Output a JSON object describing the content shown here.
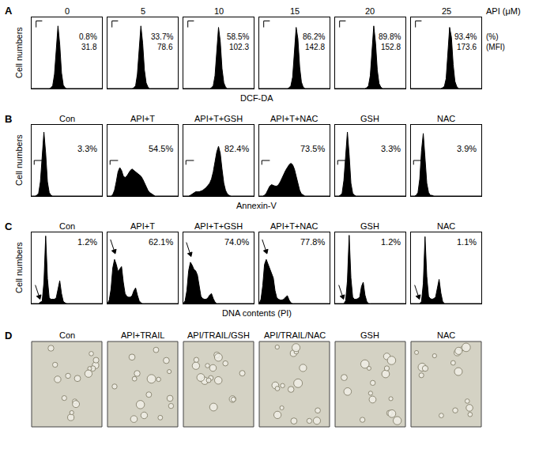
{
  "chart_data": [
    {
      "type": "area",
      "letter": "A",
      "x_label": "DCF-DA",
      "y_label": "Cell numbers",
      "header": "API (μM)",
      "row_labels": [
        "(%)",
        "(MFI)"
      ],
      "log": "x",
      "tick_labels": false,
      "grid": false,
      "color": "#000000",
      "xlim": [
        1,
        10000
      ],
      "ylim": [
        0,
        100
      ],
      "gate": [
        63.1,
        10000
      ],
      "x": [
        1,
        1.26,
        1.58,
        2,
        2.51,
        3.16,
        3.98,
        5.01,
        6.31,
        7.94,
        10,
        12.6,
        15.8,
        20,
        25.1,
        31.6,
        39.8,
        50.1,
        63.1,
        79.4,
        100,
        126,
        158,
        200,
        251,
        316,
        398,
        501,
        631,
        794,
        1000,
        1259,
        1585,
        1995,
        2512,
        3162,
        3981,
        5012,
        6310,
        7943,
        10000
      ],
      "series": [
        {
          "name": "0",
          "labels": [
            "0.8%",
            "31.8"
          ],
          "values": [
            0,
            0,
            0,
            0,
            0,
            0,
            0,
            0,
            0,
            0,
            0,
            1,
            4,
            20,
            60,
            88,
            62,
            22,
            5,
            1,
            0,
            0,
            0,
            0,
            0,
            0,
            0,
            0,
            0,
            0,
            0,
            0,
            0,
            0,
            0,
            0,
            0,
            0,
            0,
            0,
            0
          ]
        },
        {
          "name": "5",
          "labels": [
            "33.7%",
            "78.6"
          ],
          "values": [
            0,
            0,
            0,
            0,
            0,
            0,
            0,
            0,
            0,
            0,
            0,
            0,
            0,
            0,
            0,
            1,
            4,
            20,
            60,
            88,
            64,
            26,
            8,
            2,
            0,
            0,
            0,
            0,
            0,
            0,
            0,
            0,
            0,
            0,
            0,
            0,
            0,
            0,
            0,
            0,
            0
          ]
        },
        {
          "name": "10",
          "labels": [
            "58.5%",
            "102.3"
          ],
          "values": [
            0,
            0,
            0,
            0,
            0,
            0,
            0,
            0,
            0,
            0,
            0,
            0,
            0,
            0,
            0,
            0,
            1,
            4,
            18,
            58,
            86,
            66,
            28,
            8,
            2,
            0,
            0,
            0,
            0,
            0,
            0,
            0,
            0,
            0,
            0,
            0,
            0,
            0,
            0,
            0,
            0
          ]
        },
        {
          "name": "15",
          "labels": [
            "86.2%",
            "142.8"
          ],
          "values": [
            0,
            0,
            0,
            0,
            0,
            0,
            0,
            0,
            0,
            0,
            0,
            0,
            0,
            0,
            0,
            0,
            0,
            1,
            4,
            16,
            55,
            86,
            70,
            30,
            9,
            2,
            0,
            0,
            0,
            0,
            0,
            0,
            0,
            0,
            0,
            0,
            0,
            0,
            0,
            0,
            0
          ]
        },
        {
          "name": "20",
          "labels": [
            "89.8%",
            "152.8"
          ],
          "values": [
            0,
            0,
            0,
            0,
            0,
            0,
            0,
            0,
            0,
            0,
            0,
            0,
            0,
            0,
            0,
            0,
            0,
            0,
            1,
            4,
            18,
            58,
            88,
            64,
            26,
            7,
            2,
            0,
            0,
            0,
            0,
            0,
            0,
            0,
            0,
            0,
            0,
            0,
            0,
            0,
            0
          ]
        },
        {
          "name": "25",
          "labels": [
            "93.4%",
            "173.6"
          ],
          "values": [
            0,
            0,
            0,
            0,
            0,
            0,
            0,
            0,
            0,
            0,
            0,
            0,
            0,
            0,
            0,
            0,
            0,
            0,
            1,
            3,
            14,
            50,
            86,
            72,
            34,
            10,
            3,
            0,
            0,
            0,
            0,
            0,
            0,
            0,
            0,
            0,
            0,
            0,
            0,
            0,
            0
          ]
        }
      ]
    },
    {
      "type": "area",
      "letter": "B",
      "x_label": "Annexin-V",
      "y_label": "Cell numbers",
      "log": "x",
      "tick_labels": false,
      "grid": false,
      "color": "#000000",
      "xlim": [
        1,
        10000
      ],
      "ylim": [
        0,
        100
      ],
      "gate": [
        25.1,
        10000
      ],
      "x": [
        1,
        1.26,
        1.58,
        2,
        2.51,
        3.16,
        3.98,
        5.01,
        6.31,
        7.94,
        10,
        12.6,
        15.8,
        20,
        25.1,
        31.6,
        39.8,
        50.1,
        63.1,
        79.4,
        100,
        126,
        158,
        200,
        251,
        316,
        398,
        501,
        631,
        794,
        1000,
        1259,
        1585,
        1995,
        2512,
        3162,
        3981,
        5012,
        6310,
        7943,
        10000
      ],
      "series": [
        {
          "name": "Con",
          "labels": [
            "3.3%"
          ],
          "values": [
            0,
            0,
            0,
            1,
            4,
            20,
            60,
            90,
            60,
            20,
            5,
            1,
            0,
            0,
            0,
            0,
            0,
            0,
            0,
            0,
            0,
            0,
            0,
            0,
            0,
            0,
            0,
            0,
            0,
            0,
            0,
            0,
            0,
            0,
            0,
            0,
            0,
            0,
            0,
            0,
            0
          ]
        },
        {
          "name": "API+T",
          "labels": [
            "54.5%"
          ],
          "values": [
            0,
            0,
            0,
            2,
            8,
            20,
            34,
            40,
            36,
            28,
            26,
            28,
            32,
            36,
            38,
            36,
            34,
            32,
            30,
            28,
            24,
            18,
            12,
            8,
            5,
            3,
            1,
            0,
            0,
            0,
            0,
            0,
            0,
            0,
            0,
            0,
            0,
            0,
            0,
            0,
            0
          ]
        },
        {
          "name": "API+T+GSH",
          "labels": [
            "82.4%"
          ],
          "values": [
            0,
            0,
            0,
            0,
            1,
            3,
            5,
            6,
            6,
            6,
            7,
            8,
            10,
            12,
            15,
            18,
            24,
            34,
            48,
            62,
            70,
            60,
            38,
            18,
            8,
            3,
            1,
            0,
            0,
            0,
            0,
            0,
            0,
            0,
            0,
            0,
            0,
            0,
            0,
            0,
            0
          ]
        },
        {
          "name": "API+T+NAC",
          "labels": [
            "73.5%"
          ],
          "values": [
            0,
            0,
            0,
            1,
            4,
            9,
            14,
            16,
            15,
            14,
            14,
            16,
            20,
            26,
            32,
            36,
            40,
            44,
            46,
            44,
            38,
            28,
            16,
            8,
            3,
            1,
            0,
            0,
            0,
            0,
            0,
            0,
            0,
            0,
            0,
            0,
            0,
            0,
            0,
            0,
            0
          ]
        },
        {
          "name": "GSH",
          "labels": [
            "3.3%"
          ],
          "values": [
            0,
            0,
            0,
            1,
            4,
            22,
            62,
            90,
            58,
            18,
            4,
            1,
            0,
            0,
            0,
            0,
            0,
            0,
            0,
            0,
            0,
            0,
            0,
            0,
            0,
            0,
            0,
            0,
            0,
            0,
            0,
            0,
            0,
            0,
            0,
            0,
            0,
            0,
            0,
            0,
            0
          ]
        },
        {
          "name": "NAC",
          "labels": [
            "3.9%"
          ],
          "values": [
            0,
            0,
            0,
            1,
            5,
            24,
            64,
            88,
            56,
            18,
            5,
            1,
            1,
            0,
            0,
            0,
            0,
            0,
            0,
            0,
            0,
            0,
            0,
            0,
            0,
            0,
            0,
            0,
            0,
            0,
            0,
            0,
            0,
            0,
            0,
            0,
            0,
            0,
            0,
            0,
            0
          ]
        }
      ]
    },
    {
      "type": "area",
      "letter": "C",
      "x_label": "DNA contents (PI)",
      "y_label": "Cell numbers",
      "tick_labels": false,
      "grid": false,
      "color": "#000000",
      "xlim": [
        0,
        1000
      ],
      "ylim": [
        0,
        100
      ],
      "x": [
        0,
        25,
        50,
        75,
        100,
        125,
        150,
        175,
        200,
        225,
        250,
        275,
        300,
        325,
        350,
        375,
        400,
        425,
        450,
        475,
        500,
        525,
        550,
        575,
        600,
        625,
        650,
        675,
        700,
        725,
        750,
        775,
        800,
        825,
        850,
        875,
        900,
        925,
        950,
        975,
        1000
      ],
      "series": [
        {
          "name": "Con",
          "labels": [
            "1.2%"
          ],
          "arrow": [
            120,
            6
          ],
          "values": [
            0,
            0,
            0,
            0,
            0,
            2,
            3,
            30,
            95,
            35,
            8,
            6,
            6,
            6,
            8,
            22,
            32,
            14,
            3,
            1,
            0,
            0,
            0,
            0,
            0,
            0,
            0,
            0,
            0,
            0,
            0,
            0,
            0,
            0,
            0,
            0,
            0,
            0,
            0,
            0,
            0
          ]
        },
        {
          "name": "API+T",
          "labels": [
            "62.1%"
          ],
          "arrow": [
            110,
            70
          ],
          "values": [
            0,
            5,
            20,
            50,
            62,
            55,
            45,
            48,
            52,
            30,
            14,
            10,
            9,
            9,
            11,
            18,
            22,
            12,
            4,
            1,
            0,
            0,
            0,
            0,
            0,
            0,
            0,
            0,
            0,
            0,
            0,
            0,
            0,
            0,
            0,
            0,
            0,
            0,
            0,
            0,
            0
          ]
        },
        {
          "name": "API+T+GSH",
          "labels": [
            "74.0%"
          ],
          "arrow": [
            110,
            66
          ],
          "values": [
            0,
            4,
            18,
            46,
            58,
            54,
            48,
            46,
            40,
            22,
            10,
            7,
            6,
            6,
            8,
            12,
            14,
            7,
            2,
            0,
            0,
            0,
            0,
            0,
            0,
            0,
            0,
            0,
            0,
            0,
            0,
            0,
            0,
            0,
            0,
            0,
            0,
            0,
            0,
            0,
            0
          ]
        },
        {
          "name": "API+T+NAC",
          "labels": [
            "77.8%"
          ],
          "arrow": [
            110,
            70
          ],
          "values": [
            0,
            6,
            25,
            55,
            62,
            56,
            50,
            44,
            36,
            18,
            8,
            6,
            5,
            5,
            6,
            9,
            11,
            5,
            1,
            0,
            0,
            0,
            0,
            0,
            0,
            0,
            0,
            0,
            0,
            0,
            0,
            0,
            0,
            0,
            0,
            0,
            0,
            0,
            0,
            0,
            0
          ]
        },
        {
          "name": "GSH",
          "labels": [
            "1.2%"
          ],
          "arrow": [
            120,
            6
          ],
          "values": [
            0,
            0,
            0,
            0,
            0,
            0,
            4,
            32,
            96,
            36,
            9,
            6,
            6,
            7,
            9,
            24,
            30,
            12,
            3,
            0,
            0,
            0,
            0,
            0,
            0,
            0,
            0,
            0,
            0,
            0,
            0,
            0,
            0,
            0,
            0,
            0,
            0,
            0,
            0,
            0,
            0
          ]
        },
        {
          "name": "NAC",
          "labels": [
            "1.1%"
          ],
          "arrow": [
            120,
            6
          ],
          "values": [
            0,
            0,
            0,
            0,
            0,
            0,
            3,
            28,
            94,
            38,
            10,
            7,
            6,
            7,
            9,
            20,
            34,
            15,
            3,
            0,
            0,
            0,
            0,
            0,
            0,
            0,
            0,
            0,
            0,
            0,
            0,
            0,
            0,
            0,
            0,
            0,
            0,
            0,
            0,
            0,
            0
          ]
        }
      ]
    },
    {
      "type": "image",
      "letter": "D",
      "titles": [
        "Con",
        "API+TRAIL",
        "API/TRAIL/GSH",
        "API/TRAIL/NAC",
        "GSH",
        "NAC"
      ]
    }
  ]
}
